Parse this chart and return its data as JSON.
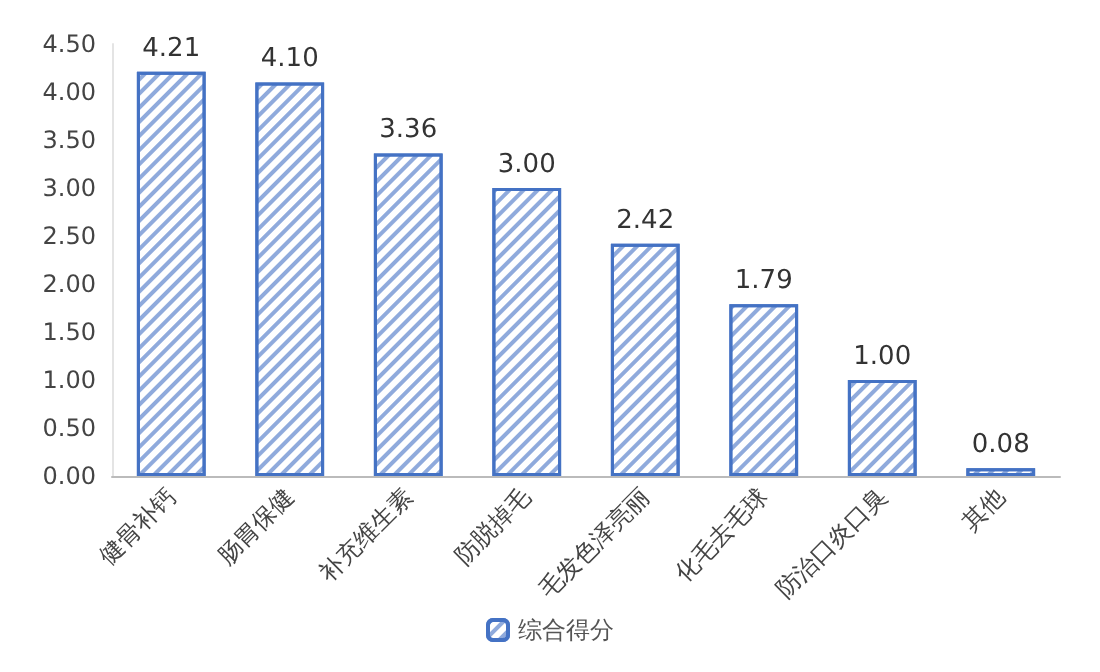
{
  "chart_data": {
    "type": "bar",
    "categories": [
      "健骨补钙",
      "肠胃保健",
      "补充维生素",
      "防脱掉毛",
      "毛发色泽亮丽",
      "化毛去毛球",
      "防治口炎口臭",
      "其他"
    ],
    "series": [
      {
        "name": "综合得分",
        "color": "#4472c4",
        "values": [
          4.21,
          4.1,
          3.36,
          3.0,
          2.42,
          1.79,
          1.0,
          0.08
        ],
        "value_labels": [
          "4.21",
          "4.10",
          "3.36",
          "3.00",
          "2.42",
          "1.79",
          "1.00",
          "0.08"
        ]
      }
    ],
    "ylim": [
      0,
      4.5
    ],
    "yticks": [
      {
        "value": 0,
        "label": "0.00"
      },
      {
        "value": 0.5,
        "label": "0.50"
      },
      {
        "value": 1,
        "label": "1.00"
      },
      {
        "value": 1.5,
        "label": "1.50"
      },
      {
        "value": 2,
        "label": "2.00"
      },
      {
        "value": 2.5,
        "label": "2.50"
      },
      {
        "value": 3,
        "label": "3.00"
      },
      {
        "value": 3.5,
        "label": "3.50"
      },
      {
        "value": 4,
        "label": "4.00"
      },
      {
        "value": 4.5,
        "label": "4.50"
      }
    ],
    "legend": "bottom",
    "grid": false
  }
}
